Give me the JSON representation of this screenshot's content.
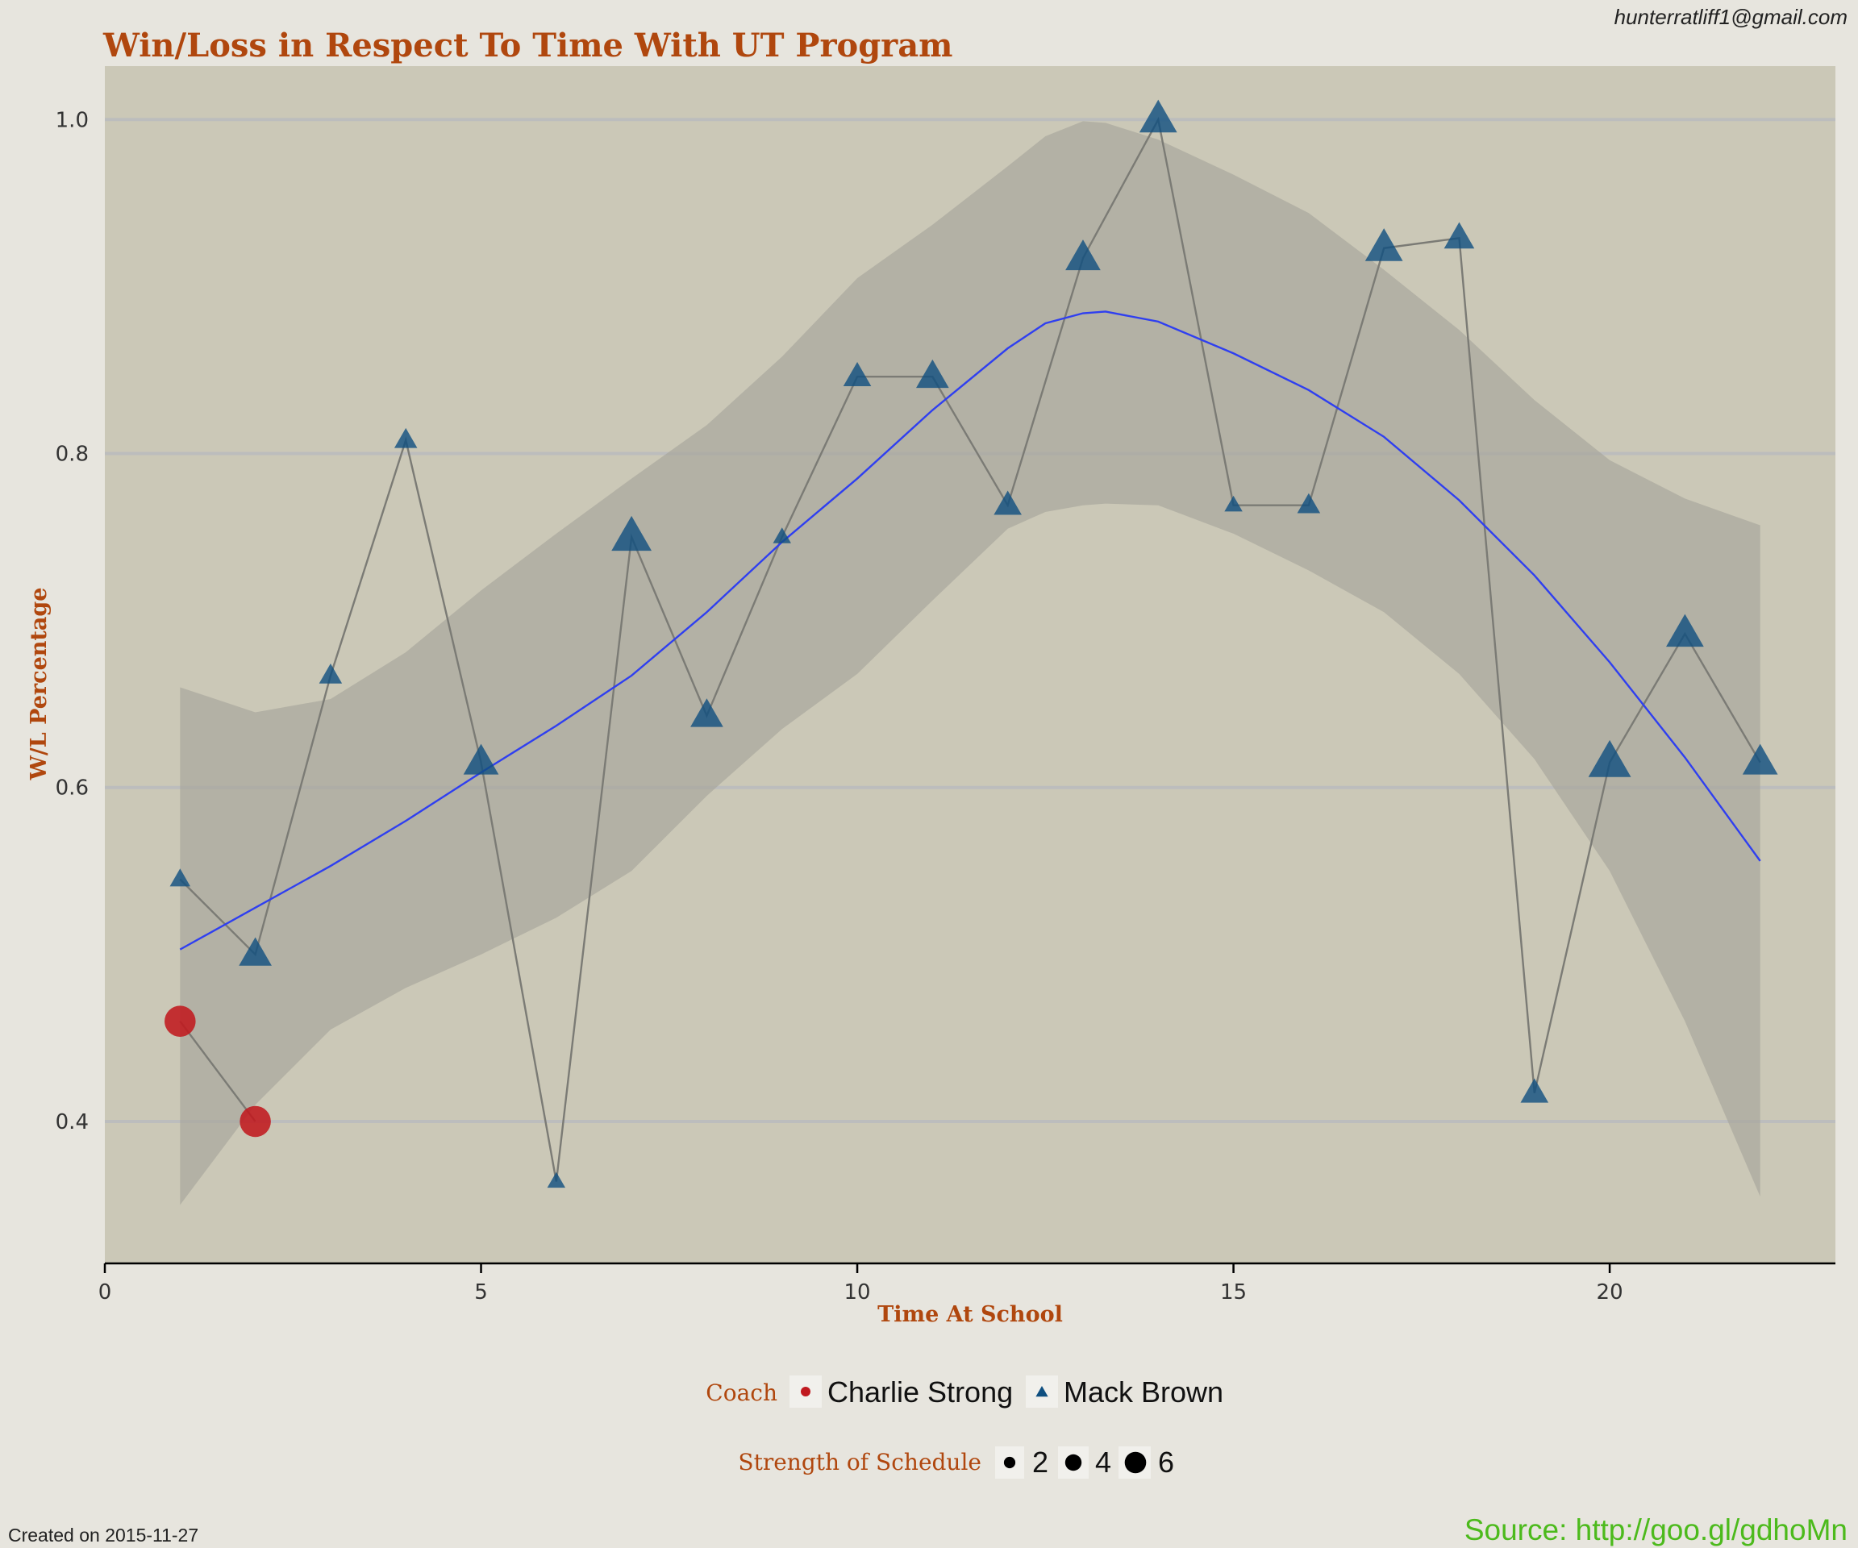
{
  "colors": {
    "background": "#e7e5de",
    "panel": "#cbc8b7",
    "grid": "#bcbdbd",
    "accent_text": "#b0470e",
    "charlie_strong": "#c0191f",
    "mack_brown": "#0f4f80",
    "connector_line": "#7b7b75",
    "smooth_line": "#2f3ff0",
    "ribbon": "#a8a69d",
    "source_text": "#4cba1c"
  },
  "header": {
    "email": "hunterratliff1@gmail.com"
  },
  "footer": {
    "created": "Created on 2015-11-27",
    "source": "Source: http://goo.gl/gdhoMn"
  },
  "chart_data": {
    "type": "scatter",
    "title": "Win/Loss in Respect To Time With UT Program",
    "xlabel": "Time At School",
    "ylabel": "W/L Percentage",
    "xlim": [
      0,
      23
    ],
    "ylim": [
      0.315,
      1.032
    ],
    "xticks": [
      0,
      5,
      10,
      15,
      20
    ],
    "xtick_labels": [
      "0",
      "5",
      "10",
      "15",
      "20"
    ],
    "yticks": [
      0.4,
      0.6,
      0.8,
      1.0
    ],
    "ytick_labels": [
      "0.4",
      "0.6",
      "0.8",
      "1.0"
    ],
    "grid": true,
    "legend": {
      "position": "bottom",
      "color_title": "Coach",
      "size_title": "Strength of Schedule",
      "size_values": [
        2,
        4,
        6
      ],
      "size_labels": [
        "2",
        "4",
        "6"
      ]
    },
    "series": [
      {
        "name": "Charlie Strong",
        "marker": "circle",
        "x": [
          1,
          2
        ],
        "y": [
          0.46,
          0.4
        ],
        "sos": [
          4.5,
          4.5
        ]
      },
      {
        "name": "Mack Brown",
        "marker": "triangle",
        "x": [
          1,
          2,
          3,
          4,
          5,
          6,
          7,
          8,
          9,
          10,
          11,
          12,
          13,
          14,
          15,
          16,
          17,
          18,
          19,
          20,
          21,
          22
        ],
        "y": [
          0.545,
          0.5,
          0.667,
          0.808,
          0.615,
          0.364,
          0.75,
          0.643,
          0.75,
          0.846,
          0.846,
          0.769,
          0.917,
          1.0,
          0.769,
          0.769,
          0.923,
          0.929,
          0.417,
          0.615,
          0.692,
          0.615
        ],
        "sos": [
          2,
          4.5,
          2.5,
          2.5,
          5,
          1.5,
          6,
          4.5,
          1.5,
          3.5,
          4.5,
          3.5,
          5,
          5.5,
          1.5,
          2.5,
          5.5,
          4,
          3.5,
          6.5,
          5.5,
          5
        ]
      }
    ],
    "smooth": {
      "x": [
        1,
        2,
        3,
        4,
        5,
        6,
        7,
        8,
        9,
        10,
        11,
        12,
        12.5,
        13,
        13.3,
        14,
        15,
        16,
        17,
        18,
        19,
        20,
        21,
        22
      ],
      "y": [
        0.503,
        0.528,
        0.553,
        0.58,
        0.609,
        0.637,
        0.667,
        0.705,
        0.747,
        0.785,
        0.826,
        0.863,
        0.878,
        0.884,
        0.885,
        0.879,
        0.86,
        0.838,
        0.81,
        0.772,
        0.727,
        0.675,
        0.618,
        0.556
      ],
      "lower": [
        0.35,
        0.41,
        0.455,
        0.48,
        0.5,
        0.522,
        0.55,
        0.595,
        0.635,
        0.668,
        0.712,
        0.755,
        0.765,
        0.769,
        0.77,
        0.769,
        0.752,
        0.73,
        0.705,
        0.668,
        0.617,
        0.55,
        0.46,
        0.355
      ],
      "upper": [
        0.66,
        0.645,
        0.653,
        0.681,
        0.718,
        0.752,
        0.785,
        0.817,
        0.858,
        0.905,
        0.937,
        0.972,
        0.99,
        0.999,
        0.998,
        0.988,
        0.967,
        0.944,
        0.91,
        0.874,
        0.832,
        0.796,
        0.773,
        0.757
      ]
    }
  }
}
